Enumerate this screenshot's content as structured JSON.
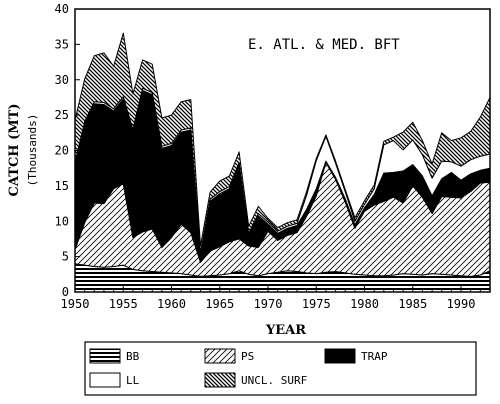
{
  "chart_data": {
    "type": "area",
    "stacked": true,
    "title": "E. ATL. & MED. BFT",
    "xlabel": "YEAR",
    "ylabel": "CATCH (MT)",
    "ylabel_sub": "(Thousands)",
    "xlim": [
      1950,
      1993
    ],
    "ylim": [
      0,
      40
    ],
    "x_ticks": [
      1950,
      1955,
      1960,
      1965,
      1970,
      1975,
      1980,
      1985,
      1990
    ],
    "y_ticks": [
      0,
      5,
      10,
      15,
      20,
      25,
      30,
      35,
      40
    ],
    "grid": false,
    "legend_position": "bottom",
    "x": [
      1950,
      1951,
      1952,
      1953,
      1954,
      1955,
      1956,
      1957,
      1958,
      1959,
      1960,
      1961,
      1962,
      1963,
      1964,
      1965,
      1966,
      1967,
      1968,
      1969,
      1970,
      1971,
      1972,
      1973,
      1974,
      1975,
      1976,
      1977,
      1978,
      1979,
      1980,
      1981,
      1982,
      1983,
      1984,
      1985,
      1986,
      1987,
      1988,
      1989,
      1990,
      1991,
      1992,
      1993
    ],
    "series": [
      {
        "name": "BB",
        "pattern": "horizontal-stripes",
        "values": [
          4.0,
          3.8,
          3.6,
          3.5,
          3.6,
          3.8,
          3.2,
          3.0,
          2.9,
          2.8,
          2.7,
          2.6,
          2.4,
          2.2,
          2.3,
          2.4,
          2.6,
          3.0,
          2.5,
          2.3,
          2.6,
          2.8,
          3.0,
          2.9,
          2.7,
          2.6,
          2.8,
          2.9,
          2.7,
          2.5,
          2.4,
          2.3,
          2.3,
          2.4,
          2.6,
          2.5,
          2.4,
          2.6,
          2.5,
          2.4,
          2.3,
          2.2,
          2.4,
          3.0
        ]
      },
      {
        "name": "PS",
        "pattern": "diagonal-hatch",
        "values": [
          2.0,
          6.0,
          9.0,
          9.0,
          11.0,
          11.5,
          4.5,
          5.5,
          6.0,
          3.5,
          5.0,
          7.0,
          6.0,
          2.0,
          3.5,
          4.0,
          4.5,
          4.5,
          4.0,
          4.0,
          6.0,
          4.5,
          5.0,
          5.5,
          8.0,
          11.0,
          15.5,
          13.0,
          10.0,
          6.5,
          9.0,
          10.0,
          10.5,
          11.0,
          10.0,
          12.5,
          11.0,
          8.5,
          11.0,
          11.0,
          11.0,
          12.0,
          13.0,
          12.5
        ]
      },
      {
        "name": "TRAP",
        "pattern": "solid",
        "values": [
          12.0,
          14.0,
          14.0,
          14.0,
          11.0,
          12.0,
          15.0,
          20.0,
          19.0,
          14.0,
          13.0,
          13.0,
          14.5,
          1.0,
          7.0,
          7.5,
          7.5,
          10.5,
          1.5,
          4.5,
          1.0,
          1.0,
          1.0,
          1.0,
          1.0,
          1.0,
          0.2,
          0.3,
          0.5,
          0.5,
          0.5,
          1.5,
          4.0,
          3.5,
          4.5,
          3.0,
          3.0,
          2.5,
          2.5,
          3.5,
          2.5,
          2.5,
          1.8,
          2.0
        ]
      },
      {
        "name": "LL",
        "pattern": "empty",
        "values": [
          0.3,
          0.3,
          0.3,
          0.3,
          0.3,
          0.3,
          0.3,
          0.3,
          0.3,
          0.3,
          0.3,
          0.3,
          0.3,
          0.3,
          0.3,
          0.3,
          0.3,
          0.3,
          0.3,
          0.3,
          0.3,
          0.3,
          0.3,
          0.3,
          2.0,
          4.0,
          3.5,
          2.0,
          1.0,
          0.5,
          0.5,
          0.8,
          4.0,
          4.5,
          3.0,
          3.5,
          3.0,
          2.5,
          2.5,
          1.5,
          2.0,
          2.0,
          2.0,
          2.0
        ]
      },
      {
        "name": "UNCL. SURF",
        "pattern": "dense-diagonal",
        "values": [
          6.0,
          6.0,
          6.5,
          7.0,
          6.0,
          9.0,
          5.0,
          4.0,
          4.0,
          4.0,
          4.0,
          4.0,
          4.0,
          1.0,
          1.0,
          1.5,
          1.5,
          1.5,
          1.0,
          1.0,
          0.5,
          0.5,
          0.5,
          0.5,
          0.5,
          0.3,
          0.2,
          0.3,
          0.3,
          0.5,
          0.5,
          0.5,
          0.5,
          0.5,
          2.5,
          2.5,
          2.0,
          2.0,
          4.0,
          3.0,
          4.0,
          4.0,
          5.5,
          8.0
        ]
      }
    ]
  }
}
